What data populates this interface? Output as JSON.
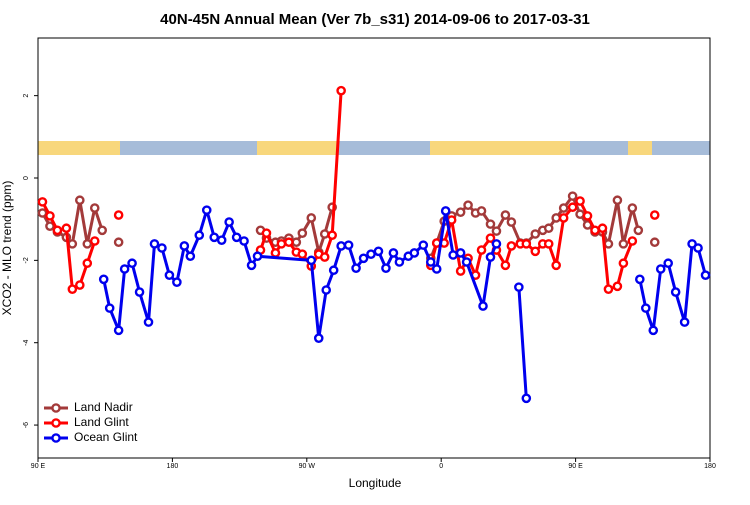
{
  "chart_data": {
    "type": "line",
    "title": "40N-45N Annual Mean (Ver 7b_s31)   2014-09-06 to 2017-03-31",
    "x_label": "Longitude",
    "y_label": "XCO2 - MLO trend (ppm)",
    "xlim": [
      90,
      540
    ],
    "xticks": [
      {
        "value": 90,
        "label": "90 E"
      },
      {
        "value": 180,
        "label": "180"
      },
      {
        "value": 270,
        "label": "90 W"
      },
      {
        "value": 360,
        "label": "0"
      },
      {
        "value": 450,
        "label": "90 E"
      },
      {
        "value": 540,
        "label": "180"
      }
    ],
    "ylim": [
      -6.8,
      3.4
    ],
    "yticks": [
      -6,
      -4,
      -2,
      0,
      2
    ],
    "legend": "bottom-left",
    "series": [
      {
        "name": "Land Nadir",
        "color": "#a33a3a",
        "x": [
          93,
          98,
          103,
          109,
          113,
          118,
          123,
          128,
          133,
          null,
          144,
          null,
          239,
          243,
          249,
          253,
          258,
          263,
          267,
          273,
          278,
          282,
          287,
          null,
          353,
          357,
          362,
          367,
          373,
          378,
          383,
          387,
          393,
          397,
          403,
          407,
          413,
          417,
          423,
          428,
          432,
          437,
          442,
          448,
          453,
          458,
          463,
          468,
          472,
          478,
          482,
          488,
          492,
          null,
          503
        ],
        "values": [
          -0.85,
          -1.17,
          -1.31,
          -1.44,
          -1.6,
          -0.54,
          -1.6,
          -0.73,
          -1.27,
          null,
          -1.56,
          null,
          -1.27,
          -1.46,
          -1.56,
          -1.53,
          -1.46,
          -1.56,
          -1.34,
          -0.97,
          -1.8,
          -1.36,
          -0.71,
          null,
          -1.95,
          -1.58,
          -1.05,
          -0.92,
          -0.83,
          -0.66,
          -0.85,
          -0.8,
          -1.12,
          -1.29,
          -0.9,
          -1.07,
          -1.58,
          -1.58,
          -1.36,
          -1.27,
          -1.22,
          -0.97,
          -0.73,
          -0.44,
          -0.88,
          -1.14,
          -1.31,
          -1.31,
          -1.6,
          -0.54,
          -1.6,
          -0.73,
          -1.27,
          null,
          -1.56
        ]
      },
      {
        "name": "Land Glint",
        "color": "#ff0000",
        "x": [
          93,
          98,
          103,
          109,
          113,
          118,
          123,
          128,
          null,
          144,
          null,
          239,
          243,
          249,
          253,
          258,
          263,
          267,
          273,
          278,
          282,
          287,
          293,
          null,
          353,
          357,
          362,
          367,
          373,
          378,
          383,
          387,
          393,
          397,
          403,
          407,
          413,
          417,
          423,
          428,
          432,
          437,
          442,
          448,
          453,
          458,
          463,
          468,
          472,
          478,
          482,
          488,
          null,
          503
        ],
        "values": [
          -0.58,
          -0.92,
          -1.27,
          -1.22,
          -2.7,
          -2.6,
          -2.07,
          -1.53,
          null,
          -0.9,
          null,
          -1.75,
          -1.34,
          -1.82,
          -1.6,
          -1.56,
          -1.8,
          -1.85,
          -2.14,
          -1.85,
          -1.92,
          -1.39,
          2.12,
          null,
          -2.12,
          -1.58,
          -1.58,
          -1.02,
          -2.26,
          -1.95,
          -2.36,
          -1.75,
          -1.46,
          -1.75,
          -2.12,
          -1.65,
          -1.6,
          -1.6,
          -1.78,
          -1.6,
          -1.6,
          -2.12,
          -0.97,
          -0.71,
          -0.56,
          -0.92,
          -1.27,
          -1.22,
          -2.7,
          -2.63,
          -2.07,
          -1.53,
          null,
          -0.9
        ]
      },
      {
        "name": "Ocean Glint",
        "color": "#0000ee",
        "x": [
          134,
          138,
          144,
          148,
          153,
          158,
          164,
          168,
          173,
          178,
          183,
          188,
          192,
          198,
          203,
          208,
          213,
          218,
          223,
          228,
          233,
          237,
          273,
          278,
          283,
          288,
          293,
          298,
          303,
          308,
          313,
          318,
          323,
          328,
          332,
          338,
          342,
          348,
          353,
          357,
          363,
          368,
          373,
          377,
          388,
          393,
          397,
          null,
          412,
          417,
          null,
          493,
          497,
          502,
          507,
          512,
          517,
          523,
          528,
          532,
          537
        ],
        "values": [
          -2.46,
          -3.16,
          -3.7,
          -2.21,
          -2.07,
          -2.77,
          -3.5,
          -1.6,
          -1.7,
          -2.36,
          -2.53,
          -1.65,
          -1.9,
          -1.39,
          -0.78,
          -1.44,
          -1.51,
          -1.07,
          -1.44,
          -1.53,
          -2.12,
          -1.9,
          -2.0,
          -3.89,
          -2.72,
          -2.24,
          -1.65,
          -1.63,
          -2.19,
          -1.95,
          -1.85,
          -1.78,
          -2.19,
          -1.82,
          -2.04,
          -1.9,
          -1.82,
          -1.63,
          -2.04,
          -2.21,
          -0.8,
          -1.87,
          -1.82,
          -2.04,
          -3.11,
          -1.92,
          -1.6,
          null,
          -2.65,
          -5.35,
          null,
          -2.46,
          -3.16,
          -3.7,
          -2.21,
          -2.07,
          -2.77,
          -3.5,
          -1.6,
          -1.7,
          -2.36
        ]
      }
    ]
  }
}
